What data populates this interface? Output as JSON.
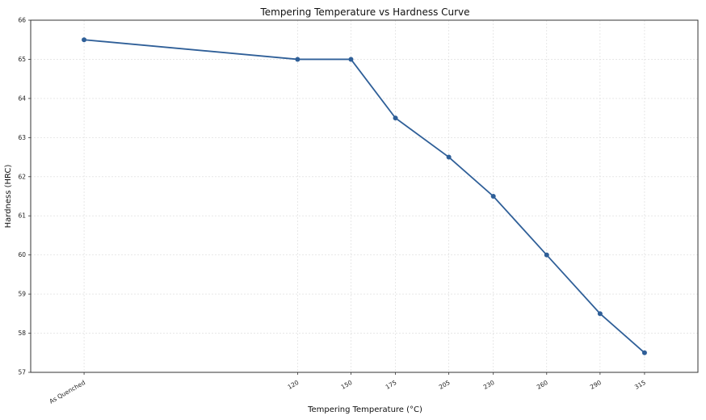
{
  "chart_data": {
    "type": "line",
    "title": "Tempering Temperature vs Hardness Curve",
    "xlabel": "Tempering Temperature (°C)",
    "ylabel": "Hardness (HRC)",
    "categories": [
      "As Quenched",
      "120",
      "150",
      "175",
      "205",
      "230",
      "260",
      "290",
      "315"
    ],
    "x_positions": [
      0,
      120,
      150,
      175,
      205,
      230,
      260,
      290,
      315
    ],
    "series": [
      {
        "values": [
          65.5,
          65,
          65,
          63.5,
          62.5,
          61.5,
          60,
          58.5,
          57.5
        ]
      }
    ],
    "ylim": [
      57,
      66
    ],
    "yticks": [
      57,
      58,
      59,
      60,
      61,
      62,
      63,
      64,
      65,
      66
    ],
    "grid": true,
    "line_color": "#2f5f98"
  }
}
